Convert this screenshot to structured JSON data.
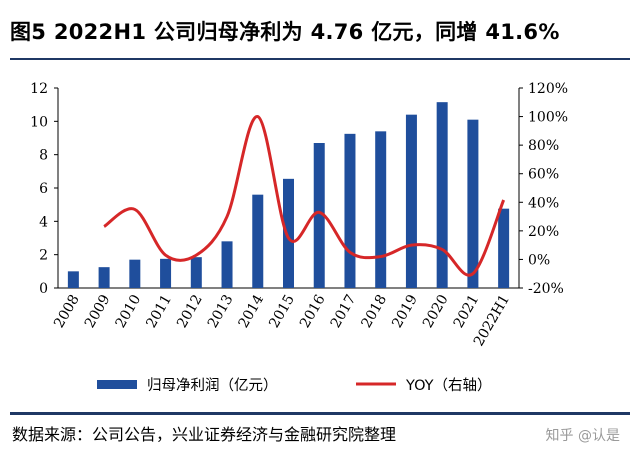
{
  "header": {
    "title": "图5 2022H1 公司归母净利为 4.76 亿元，同增 41.6%"
  },
  "footer": {
    "source": "数据来源：公司公告，兴业证券经济与金融研究院整理",
    "watermark": "知乎 @认是"
  },
  "colors": {
    "bar": "#1f4e9c",
    "line": "#d62728",
    "rule": "#1f3864"
  },
  "chart_data": {
    "type": "bar",
    "categories": [
      "2008",
      "2009",
      "2010",
      "2011",
      "2012",
      "2013",
      "2014",
      "2015",
      "2016",
      "2017",
      "2018",
      "2019",
      "2020",
      "2021",
      "2022H1"
    ],
    "series": [
      {
        "name": "归母净利润（亿元）",
        "type": "bar",
        "axis": "left",
        "values": [
          1.0,
          1.25,
          1.7,
          1.75,
          1.85,
          2.8,
          5.6,
          6.55,
          8.7,
          9.25,
          9.4,
          10.4,
          11.15,
          10.1,
          4.76
        ]
      },
      {
        "name": "YOY（右轴）",
        "type": "line",
        "axis": "right",
        "values": [
          null,
          23,
          35,
          3,
          3,
          30,
          100,
          15,
          33,
          5,
          2,
          10,
          7,
          -10,
          41.6
        ]
      }
    ],
    "y_left": {
      "min": 0,
      "max": 12,
      "ticks": [
        "0",
        "2",
        "4",
        "6",
        "8",
        "10",
        "12"
      ]
    },
    "y_right": {
      "min": -20,
      "max": 120,
      "ticks": [
        "-20%",
        "0%",
        "20%",
        "40%",
        "60%",
        "80%",
        "100%",
        "120%"
      ]
    },
    "grid": false,
    "legend": "bottom"
  }
}
